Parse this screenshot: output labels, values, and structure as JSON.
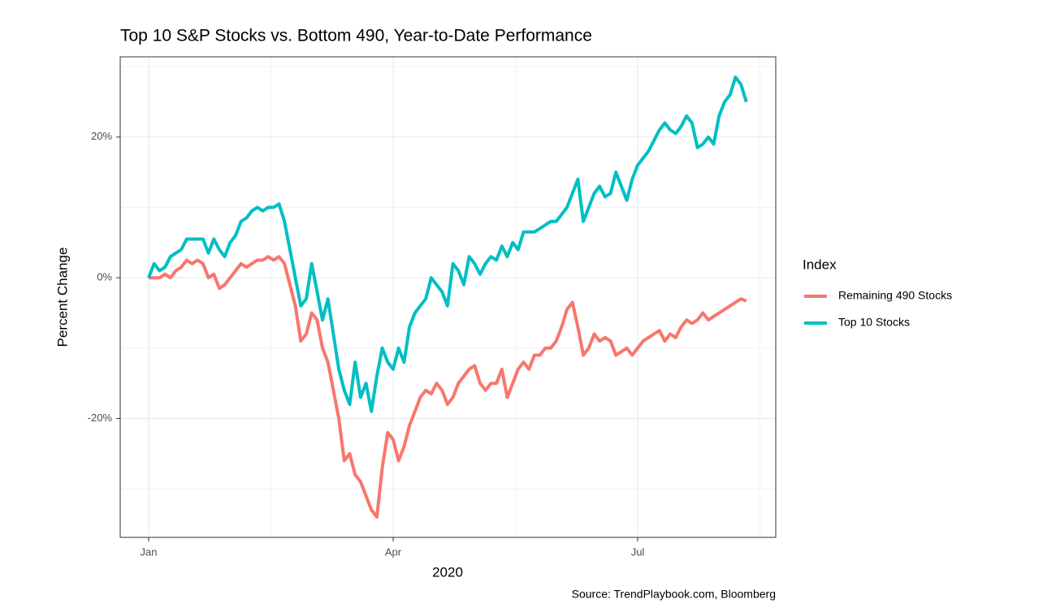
{
  "chart_data": {
    "type": "line",
    "title": "Top 10 S&P Stocks vs. Bottom 490, Year-to-Date Performance",
    "x_label": "2020",
    "y_label": "Percent Change",
    "legend_title": "Index",
    "source": "Source: TrendPlaybook.com, Bloomberg",
    "categories": [
      "Jan",
      null,
      null,
      null,
      null,
      null,
      null,
      null,
      null,
      null,
      null,
      null,
      null,
      null,
      null,
      null,
      null,
      null,
      null,
      null,
      null,
      null,
      null,
      null,
      null,
      null,
      null,
      null,
      null,
      null,
      null,
      null,
      null,
      null,
      null,
      null,
      null,
      null,
      null,
      null,
      null,
      null,
      null,
      null,
      null,
      "Apr",
      null,
      null,
      null,
      null,
      null,
      null,
      null,
      null,
      null,
      null,
      null,
      null,
      null,
      null,
      null,
      null,
      null,
      null,
      null,
      null,
      null,
      null,
      null,
      null,
      null,
      null,
      null,
      null,
      null,
      null,
      null,
      null,
      null,
      null,
      null,
      null,
      null,
      null,
      null,
      null,
      null,
      null,
      null,
      null,
      "Jul",
      null,
      null,
      null,
      null,
      null,
      null,
      null,
      null,
      null,
      null,
      null,
      null,
      null,
      null,
      null,
      null,
      null,
      null,
      null,
      null
    ],
    "series": [
      {
        "name": "Remaining 490 Stocks",
        "color": "#F8766D",
        "values": [
          0,
          0,
          0,
          0.5,
          0,
          1,
          1.5,
          2.5,
          2,
          2.5,
          2,
          0,
          0.5,
          -1.5,
          -1,
          0,
          1,
          2,
          1.5,
          2,
          2.5,
          2.5,
          3,
          2.5,
          3,
          2,
          -1,
          -4,
          -9,
          -8,
          -5,
          -6,
          -10,
          -12,
          -16,
          -20,
          -26,
          -25,
          -28,
          -29,
          -31,
          -33,
          -34,
          -27,
          -22,
          -23,
          -26,
          -24,
          -21,
          -19,
          -17,
          -16,
          -16.5,
          -15,
          -16,
          -18,
          -17,
          -15,
          -14,
          -13,
          -12.5,
          -15,
          -16,
          -15,
          -15,
          -13,
          -17,
          -15,
          -13,
          -12,
          -13,
          -11,
          -11,
          -10,
          -10,
          -9,
          -7,
          -4.5,
          -3.5,
          -7,
          -11,
          -10,
          -8,
          -9,
          -8.5,
          -9,
          -11,
          -10.5,
          -10,
          -11,
          -10,
          -9,
          -8.5,
          -8,
          -7.5,
          -9,
          -8,
          -8.5,
          -7,
          -6,
          -6.5,
          -6,
          -5,
          -6,
          -5.5,
          -5,
          -4.5,
          -4,
          -3.5,
          -3,
          -3.3
        ]
      },
      {
        "name": "Top 10 Stocks",
        "color": "#00BFC4",
        "values": [
          0,
          2,
          1,
          1.5,
          3,
          3.5,
          4,
          5.5,
          5.5,
          5.5,
          5.5,
          3.5,
          5.5,
          4,
          3,
          5,
          6,
          8,
          8.5,
          9.5,
          10,
          9.5,
          10,
          10,
          10.5,
          8,
          4,
          0,
          -4,
          -3,
          2,
          -2,
          -6,
          -3,
          -8,
          -13,
          -16,
          -18,
          -12,
          -17,
          -15,
          -19,
          -14,
          -10,
          -12,
          -13,
          -10,
          -12,
          -7,
          -5,
          -4,
          -3,
          0,
          -1,
          -2,
          -4,
          2,
          1,
          -1,
          3,
          2,
          0.5,
          2,
          3,
          2.5,
          4.5,
          3,
          5,
          4,
          6.5,
          6.5,
          6.5,
          7,
          7.5,
          8,
          8,
          9,
          10,
          12,
          14,
          8,
          10,
          12,
          13,
          11.5,
          12,
          15,
          13,
          11,
          14,
          16,
          17,
          18,
          19.5,
          21,
          22,
          21,
          20.5,
          21.5,
          23,
          22,
          18.5,
          19,
          20,
          19,
          23,
          25,
          26,
          28.5,
          27.5,
          25
        ]
      }
    ],
    "ylim": [
      -36.9,
      31.4
    ],
    "yticks": [
      {
        "value": -20,
        "label": "-20%"
      },
      {
        "value": 0,
        "label": "0%"
      },
      {
        "value": 20,
        "label": "20%"
      }
    ],
    "grid": true,
    "legend": "right"
  }
}
